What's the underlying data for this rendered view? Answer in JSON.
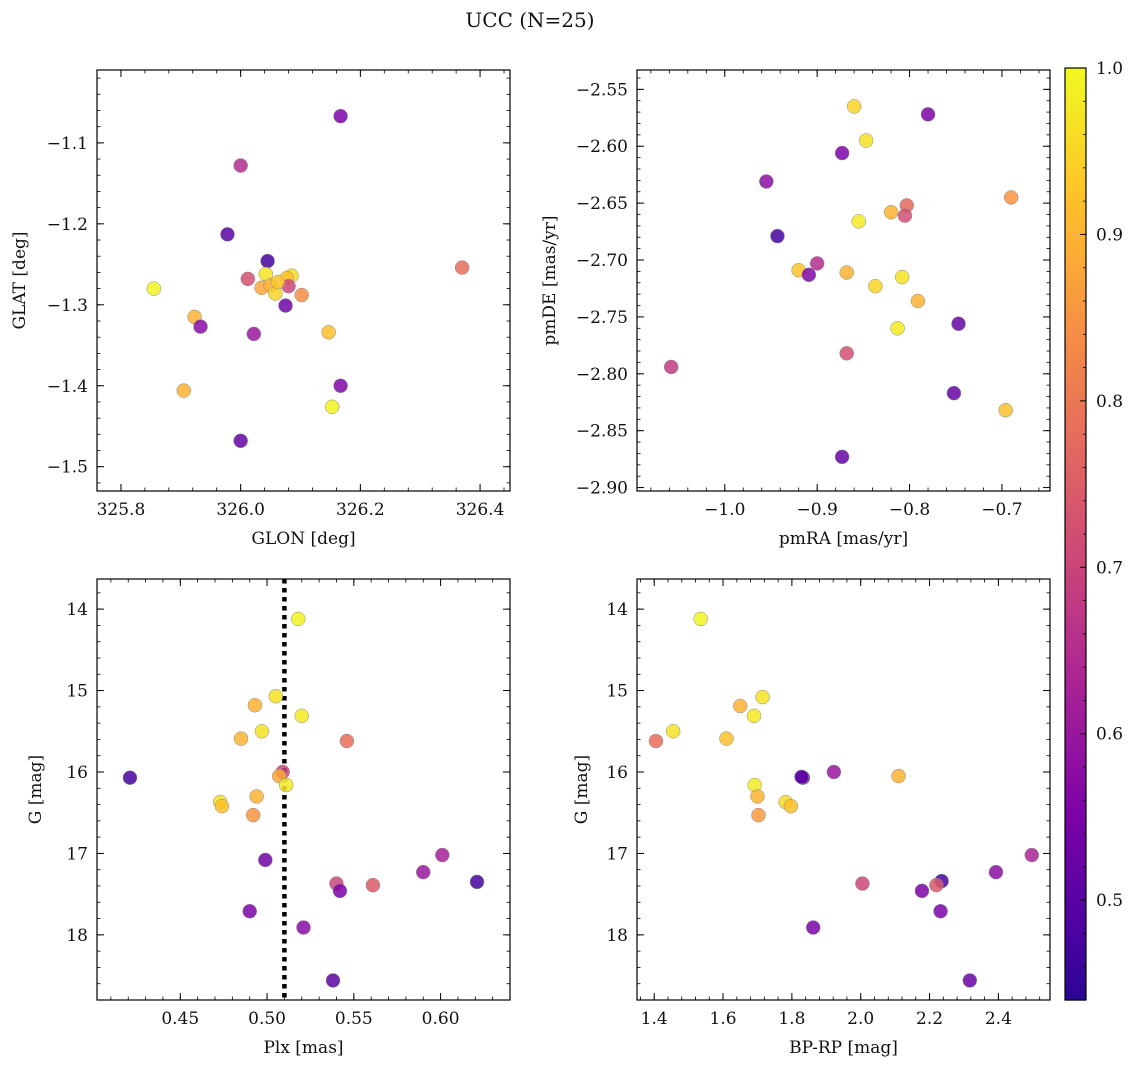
{
  "figure": {
    "title": "UCC (N=25)"
  },
  "chart_data": [
    {
      "type": "scatter",
      "id": "p1",
      "xlabel": "GLON [deg]",
      "ylabel": "GLAT [deg]",
      "xlim": [
        325.76,
        326.45
      ],
      "ylim": [
        -1.53,
        -1.01
      ],
      "xticks": [
        325.8,
        326.0,
        326.2,
        326.4
      ],
      "xtick_labels": [
        "325.8",
        "326.0",
        "326.2",
        "326.4"
      ],
      "yticks": [
        -1.1,
        -1.2,
        -1.3,
        -1.4,
        -1.5
      ],
      "ytick_labels": [
        "−1.1",
        "−1.2",
        "−1.3",
        "−1.4",
        "−1.5"
      ],
      "points": [
        {
          "x": 326.167,
          "y": -1.067,
          "c": 0.55
        },
        {
          "x": 326.0,
          "y": -1.128,
          "c": 0.65
        },
        {
          "x": 325.978,
          "y": -1.213,
          "c": 0.5
        },
        {
          "x": 326.045,
          "y": -1.246,
          "c": 0.47
        },
        {
          "x": 326.012,
          "y": -1.268,
          "c": 0.72
        },
        {
          "x": 326.042,
          "y": -1.262,
          "c": 0.97
        },
        {
          "x": 326.085,
          "y": -1.264,
          "c": 0.96
        },
        {
          "x": 326.077,
          "y": -1.267,
          "c": 0.92
        },
        {
          "x": 326.035,
          "y": -1.279,
          "c": 0.88
        },
        {
          "x": 326.05,
          "y": -1.276,
          "c": 0.9
        },
        {
          "x": 326.08,
          "y": -1.277,
          "c": 0.7
        },
        {
          "x": 326.058,
          "y": -1.286,
          "c": 0.95
        },
        {
          "x": 326.102,
          "y": -1.288,
          "c": 0.84
        },
        {
          "x": 326.075,
          "y": -1.301,
          "c": 0.53
        },
        {
          "x": 325.855,
          "y": -1.28,
          "c": 0.99
        },
        {
          "x": 325.923,
          "y": -1.315,
          "c": 0.9
        },
        {
          "x": 325.933,
          "y": -1.327,
          "c": 0.57
        },
        {
          "x": 326.022,
          "y": -1.336,
          "c": 0.6
        },
        {
          "x": 326.147,
          "y": -1.334,
          "c": 0.92
        },
        {
          "x": 326.37,
          "y": -1.254,
          "c": 0.78
        },
        {
          "x": 326.167,
          "y": -1.4,
          "c": 0.56
        },
        {
          "x": 326.153,
          "y": -1.426,
          "c": 0.99
        },
        {
          "x": 325.905,
          "y": -1.406,
          "c": 0.9
        },
        {
          "x": 326.0,
          "y": -1.468,
          "c": 0.52
        },
        {
          "x": 326.062,
          "y": -1.272,
          "c": 0.93
        }
      ]
    },
    {
      "type": "scatter",
      "id": "p2",
      "xlabel": "pmRA [mas/yr]",
      "ylabel": "pmDE [mas/yr]",
      "xlim": [
        -1.095,
        -0.648
      ],
      "ylim": [
        -2.903,
        -2.533
      ],
      "xticks": [
        -1.0,
        -0.9,
        -0.8,
        -0.7
      ],
      "xtick_labels": [
        "−1.0",
        "−0.9",
        "−0.8",
        "−0.7"
      ],
      "yticks": [
        -2.55,
        -2.6,
        -2.65,
        -2.7,
        -2.75,
        -2.8,
        -2.85,
        -2.9
      ],
      "ytick_labels": [
        "−2.55",
        "−2.60",
        "−2.65",
        "−2.70",
        "−2.75",
        "−2.80",
        "−2.85",
        "−2.90"
      ],
      "points": [
        {
          "x": -0.86,
          "y": -2.565,
          "c": 0.95
        },
        {
          "x": -0.78,
          "y": -2.572,
          "c": 0.55
        },
        {
          "x": -0.847,
          "y": -2.595,
          "c": 0.97
        },
        {
          "x": -0.873,
          "y": -2.606,
          "c": 0.55
        },
        {
          "x": -0.955,
          "y": -2.631,
          "c": 0.58
        },
        {
          "x": -0.69,
          "y": -2.645,
          "c": 0.85
        },
        {
          "x": -0.803,
          "y": -2.652,
          "c": 0.77
        },
        {
          "x": -0.82,
          "y": -2.658,
          "c": 0.9
        },
        {
          "x": -0.805,
          "y": -2.661,
          "c": 0.72
        },
        {
          "x": -0.855,
          "y": -2.666,
          "c": 0.98
        },
        {
          "x": -0.943,
          "y": -2.679,
          "c": 0.47
        },
        {
          "x": -0.9,
          "y": -2.703,
          "c": 0.65
        },
        {
          "x": -0.92,
          "y": -2.709,
          "c": 0.93
        },
        {
          "x": -0.868,
          "y": -2.711,
          "c": 0.9
        },
        {
          "x": -0.909,
          "y": -2.713,
          "c": 0.56
        },
        {
          "x": -0.808,
          "y": -2.715,
          "c": 0.97
        },
        {
          "x": -0.837,
          "y": -2.723,
          "c": 0.95
        },
        {
          "x": -0.791,
          "y": -2.736,
          "c": 0.9
        },
        {
          "x": -0.747,
          "y": -2.756,
          "c": 0.52
        },
        {
          "x": -0.813,
          "y": -2.76,
          "c": 0.98
        },
        {
          "x": -0.868,
          "y": -2.782,
          "c": 0.72
        },
        {
          "x": -1.058,
          "y": -2.794,
          "c": 0.68
        },
        {
          "x": -0.752,
          "y": -2.817,
          "c": 0.52
        },
        {
          "x": -0.696,
          "y": -2.832,
          "c": 0.92
        },
        {
          "x": -0.873,
          "y": -2.873,
          "c": 0.52
        }
      ]
    },
    {
      "type": "scatter",
      "id": "p3",
      "xlabel": "Plx [mas]",
      "ylabel": "G [mag]",
      "xlim": [
        0.402,
        0.64
      ],
      "ylim": [
        18.8,
        13.63
      ],
      "invert_y": true,
      "vline": {
        "x": 0.51,
        "style": "dotted"
      },
      "xticks": [
        0.45,
        0.5,
        0.55,
        0.6
      ],
      "xtick_labels": [
        "0.45",
        "0.50",
        "0.55",
        "0.60"
      ],
      "yticks": [
        14,
        15,
        16,
        17,
        18
      ],
      "ytick_labels": [
        "14",
        "15",
        "16",
        "17",
        "18"
      ],
      "points": [
        {
          "x": 0.518,
          "y": 14.12,
          "c": 0.99
        },
        {
          "x": 0.505,
          "y": 15.07,
          "c": 0.97
        },
        {
          "x": 0.493,
          "y": 15.18,
          "c": 0.9
        },
        {
          "x": 0.52,
          "y": 15.31,
          "c": 0.98
        },
        {
          "x": 0.497,
          "y": 15.5,
          "c": 0.97
        },
        {
          "x": 0.485,
          "y": 15.59,
          "c": 0.9
        },
        {
          "x": 0.546,
          "y": 15.62,
          "c": 0.78
        },
        {
          "x": 0.421,
          "y": 16.07,
          "c": 0.47
        },
        {
          "x": 0.509,
          "y": 16.0,
          "c": 0.7
        },
        {
          "x": 0.507,
          "y": 16.05,
          "c": 0.88
        },
        {
          "x": 0.511,
          "y": 16.16,
          "c": 0.98
        },
        {
          "x": 0.494,
          "y": 16.3,
          "c": 0.9
        },
        {
          "x": 0.473,
          "y": 16.37,
          "c": 0.97
        },
        {
          "x": 0.474,
          "y": 16.42,
          "c": 0.92
        },
        {
          "x": 0.492,
          "y": 16.53,
          "c": 0.85
        },
        {
          "x": 0.601,
          "y": 17.02,
          "c": 0.62
        },
        {
          "x": 0.499,
          "y": 17.08,
          "c": 0.53
        },
        {
          "x": 0.59,
          "y": 17.23,
          "c": 0.6
        },
        {
          "x": 0.621,
          "y": 17.35,
          "c": 0.47
        },
        {
          "x": 0.54,
          "y": 17.37,
          "c": 0.7
        },
        {
          "x": 0.561,
          "y": 17.39,
          "c": 0.74
        },
        {
          "x": 0.542,
          "y": 17.46,
          "c": 0.55
        },
        {
          "x": 0.49,
          "y": 17.71,
          "c": 0.55
        },
        {
          "x": 0.521,
          "y": 17.91,
          "c": 0.57
        },
        {
          "x": 0.538,
          "y": 18.56,
          "c": 0.5
        }
      ]
    },
    {
      "type": "scatter",
      "id": "p4",
      "xlabel": "BP-RP [mag]",
      "ylabel": "G [mag]",
      "xlim": [
        1.35,
        2.55
      ],
      "ylim": [
        18.8,
        13.63
      ],
      "invert_y": true,
      "xticks": [
        1.4,
        1.6,
        1.8,
        2.0,
        2.2,
        2.4
      ],
      "xtick_labels": [
        "1.4",
        "1.6",
        "1.8",
        "2.0",
        "2.2",
        "2.4"
      ],
      "yticks": [
        14,
        15,
        16,
        17,
        18
      ],
      "ytick_labels": [
        "14",
        "15",
        "16",
        "17",
        "18"
      ],
      "points": [
        {
          "x": 1.535,
          "y": 14.12,
          "c": 0.99
        },
        {
          "x": 1.715,
          "y": 15.08,
          "c": 0.97
        },
        {
          "x": 1.65,
          "y": 15.19,
          "c": 0.9
        },
        {
          "x": 1.69,
          "y": 15.31,
          "c": 0.98
        },
        {
          "x": 1.455,
          "y": 15.5,
          "c": 0.97
        },
        {
          "x": 1.61,
          "y": 15.59,
          "c": 0.92
        },
        {
          "x": 1.405,
          "y": 15.62,
          "c": 0.78
        },
        {
          "x": 1.922,
          "y": 16.0,
          "c": 0.6
        },
        {
          "x": 1.832,
          "y": 16.07,
          "c": 0.52
        },
        {
          "x": 2.11,
          "y": 16.05,
          "c": 0.9
        },
        {
          "x": 1.692,
          "y": 16.16,
          "c": 0.98
        },
        {
          "x": 1.7,
          "y": 16.3,
          "c": 0.9
        },
        {
          "x": 1.782,
          "y": 16.37,
          "c": 0.96
        },
        {
          "x": 1.797,
          "y": 16.42,
          "c": 0.92
        },
        {
          "x": 1.703,
          "y": 16.53,
          "c": 0.86
        },
        {
          "x": 2.497,
          "y": 17.02,
          "c": 0.63
        },
        {
          "x": 2.393,
          "y": 17.23,
          "c": 0.58
        },
        {
          "x": 2.235,
          "y": 17.34,
          "c": 0.47
        },
        {
          "x": 2.005,
          "y": 17.37,
          "c": 0.7
        },
        {
          "x": 2.22,
          "y": 17.39,
          "c": 0.74
        },
        {
          "x": 2.178,
          "y": 17.46,
          "c": 0.55
        },
        {
          "x": 2.232,
          "y": 17.71,
          "c": 0.55
        },
        {
          "x": 1.862,
          "y": 17.91,
          "c": 0.55
        },
        {
          "x": 2.317,
          "y": 18.56,
          "c": 0.52
        },
        {
          "x": 1.828,
          "y": 16.06,
          "c": 0.5
        }
      ]
    }
  ],
  "colorbar": {
    "colormap": "plasma",
    "range": [
      0.44,
      1.0
    ],
    "ticks": [
      0.5,
      0.6,
      0.7,
      0.8,
      0.9,
      1.0
    ],
    "tick_labels": [
      "0.5",
      "0.6",
      "0.7",
      "0.8",
      "0.9",
      "1.0"
    ]
  }
}
